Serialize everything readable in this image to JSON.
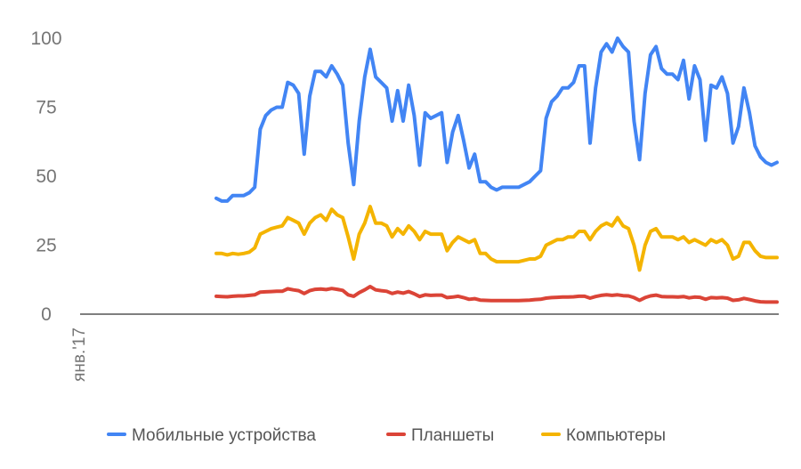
{
  "chart_data": {
    "type": "line",
    "title": "",
    "xlabel": "",
    "ylabel": "",
    "ylim": [
      0,
      100
    ],
    "yticks": [
      "0",
      "25",
      "50",
      "75",
      "100"
    ],
    "x_tick_labels": [
      "янв.'17"
    ],
    "grid": false,
    "legend_position": "bottom",
    "series": [
      {
        "name": "Мобильные устройства",
        "color": "#4285F4",
        "values": [
          42,
          41,
          41,
          43,
          43,
          43,
          44,
          46,
          67,
          72,
          74,
          75,
          75,
          84,
          83,
          80,
          58,
          79,
          88,
          88,
          86,
          90,
          87,
          83,
          62,
          47,
          70,
          86,
          96,
          86,
          84,
          82,
          70,
          81,
          70,
          83,
          72,
          54,
          73,
          71,
          72,
          73,
          55,
          66,
          72,
          63,
          53,
          58,
          48,
          48,
          46,
          45,
          46,
          46,
          46,
          46,
          47,
          48,
          50,
          52,
          71,
          77,
          79,
          82,
          82,
          84,
          90,
          90,
          62,
          82,
          95,
          98,
          95,
          100,
          97,
          95,
          70,
          56,
          80,
          94,
          97,
          89,
          87,
          87,
          85,
          92,
          78,
          90,
          85,
          63,
          83,
          82,
          86,
          80,
          62,
          68,
          82,
          73,
          61,
          57,
          55,
          54,
          55
        ]
      },
      {
        "name": "Планшеты",
        "color": "#DB4437",
        "values": [
          6.5,
          6.4,
          6.3,
          6.5,
          6.6,
          6.6,
          6.8,
          7,
          8,
          8.1,
          8.2,
          8.3,
          8.3,
          9.2,
          8.8,
          8.5,
          7.5,
          8.5,
          9,
          9.1,
          8.9,
          9.3,
          9,
          8.6,
          7,
          6.5,
          7.8,
          8.8,
          10,
          8.8,
          8.5,
          8.3,
          7.5,
          8,
          7.6,
          8.2,
          7.4,
          6.4,
          7,
          6.8,
          6.9,
          6.9,
          6,
          6.2,
          6.5,
          6,
          5.4,
          5.6,
          5.1,
          5,
          4.9,
          4.9,
          4.9,
          4.9,
          4.9,
          4.9,
          5,
          5.1,
          5.3,
          5.4,
          5.8,
          6,
          6.1,
          6.2,
          6.2,
          6.3,
          6.5,
          6.5,
          5.8,
          6.4,
          6.8,
          7,
          6.8,
          7,
          6.7,
          6.6,
          6,
          5,
          6,
          6.6,
          6.9,
          6.4,
          6.3,
          6.3,
          6.2,
          6.4,
          5.9,
          6.2,
          6.1,
          5.4,
          6,
          5.9,
          6,
          5.8,
          5,
          5.2,
          5.7,
          5.3,
          4.8,
          4.5,
          4.4,
          4.4,
          4.4
        ]
      },
      {
        "name": "Компьютеры",
        "color": "#F4B400",
        "values": [
          22,
          22,
          21.5,
          22,
          21.7,
          22,
          22.5,
          24,
          29,
          30,
          31,
          31.5,
          32,
          35,
          34,
          33,
          29,
          33,
          35,
          36,
          34,
          38,
          36,
          35,
          28,
          20,
          29,
          33,
          39,
          33,
          33,
          32,
          28,
          31,
          29,
          32,
          30,
          27,
          30,
          29,
          29,
          29,
          23,
          26,
          28,
          27,
          26,
          27,
          22,
          22,
          20,
          19,
          19,
          19,
          19,
          19,
          19.5,
          20,
          20,
          21,
          25,
          26,
          27,
          27,
          28,
          28,
          30,
          30,
          27,
          30,
          32,
          33,
          32,
          35,
          32,
          31,
          25,
          16,
          25,
          30,
          31,
          28,
          28,
          28,
          27,
          28,
          26,
          27,
          26,
          25,
          27,
          26,
          27,
          25,
          20,
          21,
          26,
          26,
          23,
          21,
          20.5,
          20.5,
          20.5
        ]
      }
    ]
  }
}
